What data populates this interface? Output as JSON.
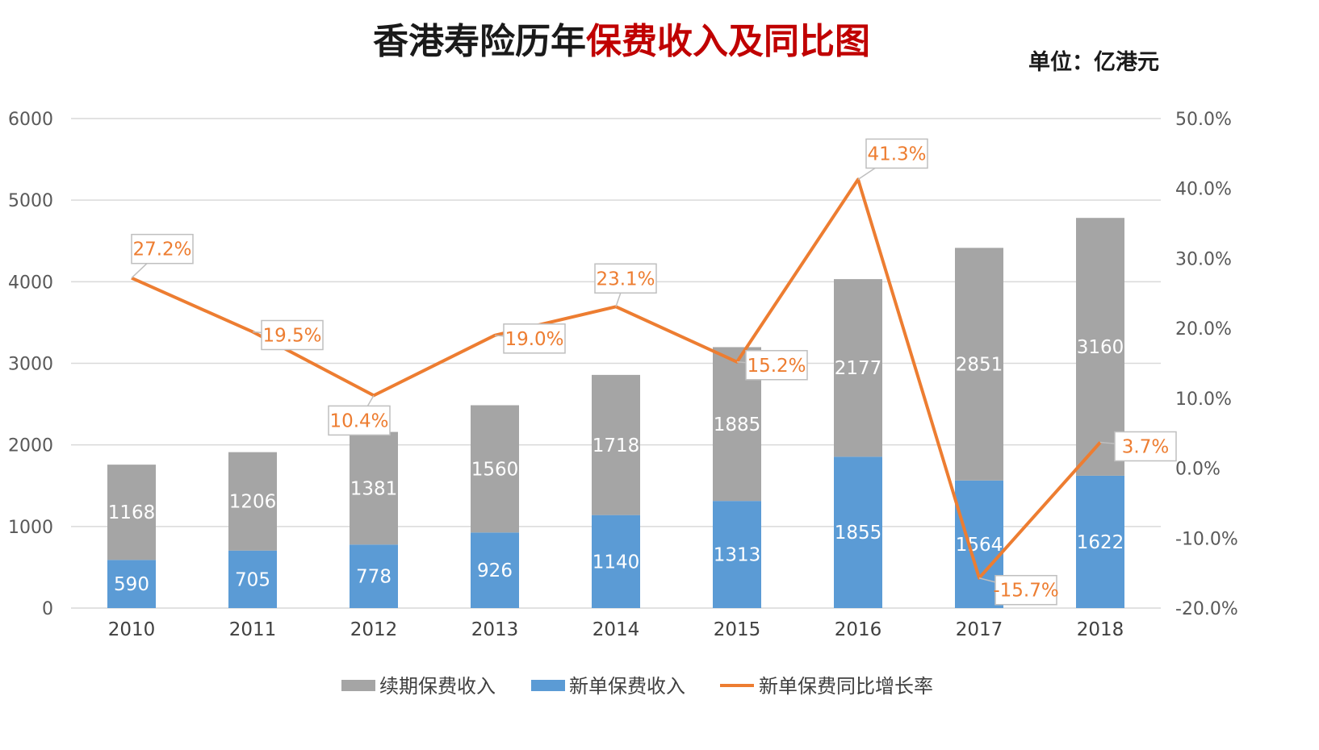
{
  "header": {
    "title_part1": "香港寿险历年",
    "title_part2": "保费收入及同比图",
    "unit": "单位：亿港元"
  },
  "colors": {
    "renewal": "#a5a5a5",
    "new": "#5b9bd5",
    "rate": "#ed7d31",
    "title_red": "#c00000"
  },
  "chart_data": {
    "type": "bar",
    "stacked": true,
    "title": "香港寿险历年保费收入及同比图",
    "unit": "单位：亿港元",
    "categories": [
      "2010",
      "2011",
      "2012",
      "2013",
      "2014",
      "2015",
      "2016",
      "2017",
      "2018"
    ],
    "series": [
      {
        "name": "续期保费收入",
        "type": "bar",
        "values": [
          1168,
          1206,
          1381,
          1560,
          1718,
          1885,
          2177,
          2851,
          3160
        ]
      },
      {
        "name": "新单保费收入",
        "type": "bar",
        "values": [
          590,
          705,
          778,
          926,
          1140,
          1313,
          1855,
          1564,
          1622
        ]
      },
      {
        "name": "新单保费同比增长率",
        "type": "line",
        "axis": "right",
        "values": [
          27.2,
          19.5,
          10.4,
          19.0,
          23.1,
          15.2,
          41.3,
          -15.7,
          3.7
        ],
        "labels": [
          "27.2%",
          "19.5%",
          "10.4%",
          "19.0%",
          "23.1%",
          "15.2%",
          "41.3%",
          "-15.7%",
          "3.7%"
        ]
      }
    ],
    "y_left": {
      "ylim": [
        0,
        6000
      ],
      "ticks": [
        "0",
        "1000",
        "2000",
        "3000",
        "4000",
        "5000",
        "6000"
      ]
    },
    "y_right": {
      "ylim": [
        -20,
        50
      ],
      "ticks": [
        "-20.0%",
        "-10.0%",
        "0.0%",
        "10.0%",
        "20.0%",
        "30.0%",
        "40.0%",
        "50.0%"
      ]
    },
    "grid": true,
    "legend": "bottom"
  }
}
